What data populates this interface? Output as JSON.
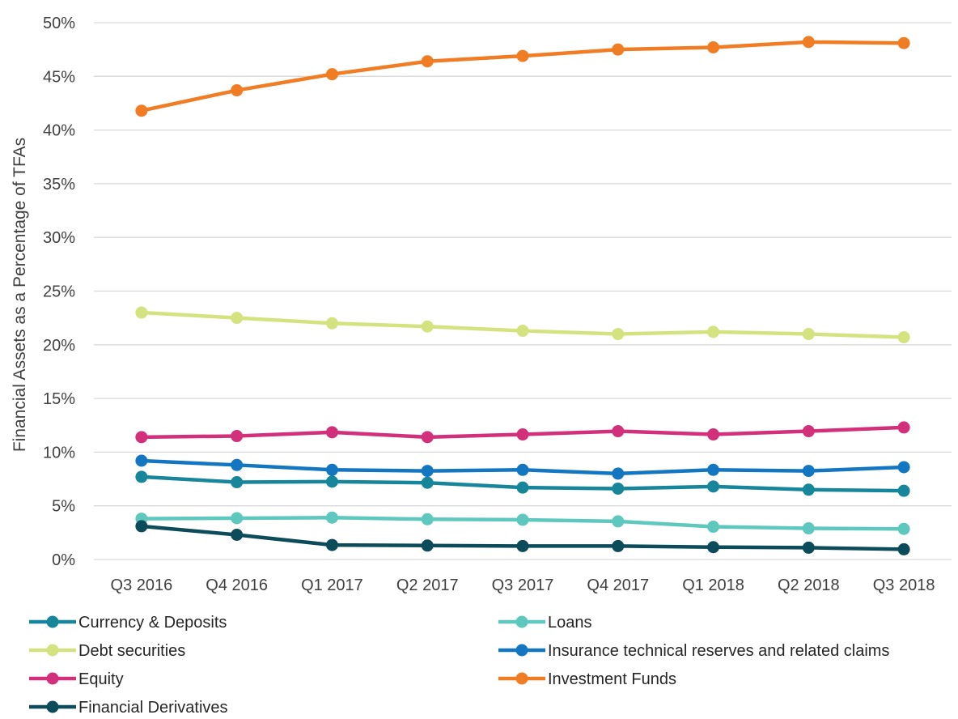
{
  "chart_data": {
    "type": "line",
    "title": "",
    "xlabel": "",
    "ylabel": "Financial Assets as a Percentage of TFAs",
    "categories": [
      "Q3 2016",
      "Q4 2016",
      "Q1 2017",
      "Q2 2017",
      "Q3 2017",
      "Q4 2017",
      "Q1 2018",
      "Q2 2018",
      "Q3 2018"
    ],
    "ylim": [
      0,
      50
    ],
    "yticks": [
      0,
      5,
      10,
      15,
      20,
      25,
      30,
      35,
      40,
      45,
      50
    ],
    "ytick_labels": [
      "0%",
      "5%",
      "10%",
      "15%",
      "20%",
      "25%",
      "30%",
      "35%",
      "40%",
      "45%",
      "50%"
    ],
    "grid": true,
    "legend_position": "bottom",
    "series": [
      {
        "name": "Currency & Deposits",
        "color": "#17869b",
        "values": [
          7.7,
          7.2,
          7.25,
          7.15,
          6.7,
          6.6,
          6.8,
          6.5,
          6.4
        ]
      },
      {
        "name": "Loans",
        "color": "#5ec8bf",
        "values": [
          3.8,
          3.85,
          3.9,
          3.75,
          3.7,
          3.55,
          3.05,
          2.9,
          2.85
        ]
      },
      {
        "name": "Debt securities",
        "color": "#d4e37f",
        "values": [
          23.0,
          22.5,
          22.0,
          21.7,
          21.3,
          21.0,
          21.2,
          21.0,
          20.7
        ]
      },
      {
        "name": "Insurance technical reserves and related claims",
        "color": "#1277c0",
        "values": [
          9.2,
          8.8,
          8.35,
          8.25,
          8.35,
          8.0,
          8.35,
          8.25,
          8.6
        ]
      },
      {
        "name": "Equity",
        "color": "#d2307b",
        "values": [
          11.4,
          11.5,
          11.85,
          11.4,
          11.65,
          11.95,
          11.65,
          11.95,
          12.3
        ]
      },
      {
        "name": "Investment Funds",
        "color": "#f07c24",
        "values": [
          41.8,
          43.7,
          45.2,
          46.4,
          46.9,
          47.5,
          47.7,
          48.2,
          48.1
        ]
      },
      {
        "name": "Financial Derivatives",
        "color": "#0c4b5a",
        "values": [
          3.1,
          2.3,
          1.35,
          1.3,
          1.25,
          1.25,
          1.15,
          1.1,
          0.95
        ]
      }
    ]
  }
}
